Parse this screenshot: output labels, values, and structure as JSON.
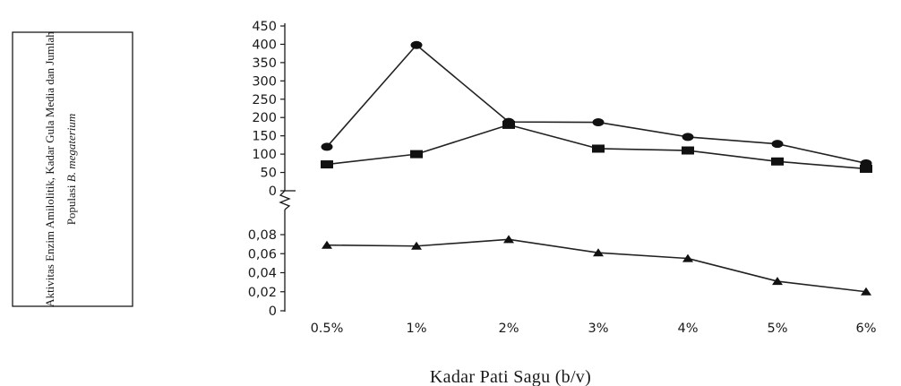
{
  "chart_data": {
    "type": "line",
    "xlabel": "Kadar Pati Sagu (b/v)",
    "ylabel_line1": "Aktivitas Enzim Amilolitik, Kadar Gula Media dan Jumlah",
    "ylabel_line2_prefix": "Populasi ",
    "ylabel_line2_italic": "B. megaterium",
    "categories": [
      "0.5%",
      "1%",
      "2%",
      "3%",
      "4%",
      "5%",
      "6%"
    ],
    "upper_axis": {
      "ylim": [
        0,
        450
      ],
      "ticks": [
        "450",
        "400",
        "350",
        "300",
        "250",
        "200",
        "150",
        "100",
        "50",
        "0"
      ],
      "tick_values": [
        450,
        400,
        350,
        300,
        250,
        200,
        150,
        100,
        50,
        0
      ]
    },
    "lower_axis": {
      "ylim": [
        0,
        0.08
      ],
      "ticks": [
        "0,08",
        "0,06",
        "0,04",
        "0,02",
        "0"
      ],
      "tick_values": [
        0.08,
        0.06,
        0.04,
        0.02,
        0
      ]
    },
    "series": [
      {
        "marker": "circle",
        "axis": "upper",
        "values": [
          120,
          398,
          188,
          187,
          147,
          128,
          75
        ]
      },
      {
        "marker": "square",
        "axis": "upper",
        "values": [
          72,
          100,
          180,
          115,
          110,
          80,
          60
        ]
      },
      {
        "marker": "triangle",
        "axis": "lower",
        "values": [
          0.069,
          0.068,
          0.075,
          0.061,
          0.055,
          0.031,
          0.02
        ]
      }
    ],
    "grid": false,
    "legend": "none"
  }
}
